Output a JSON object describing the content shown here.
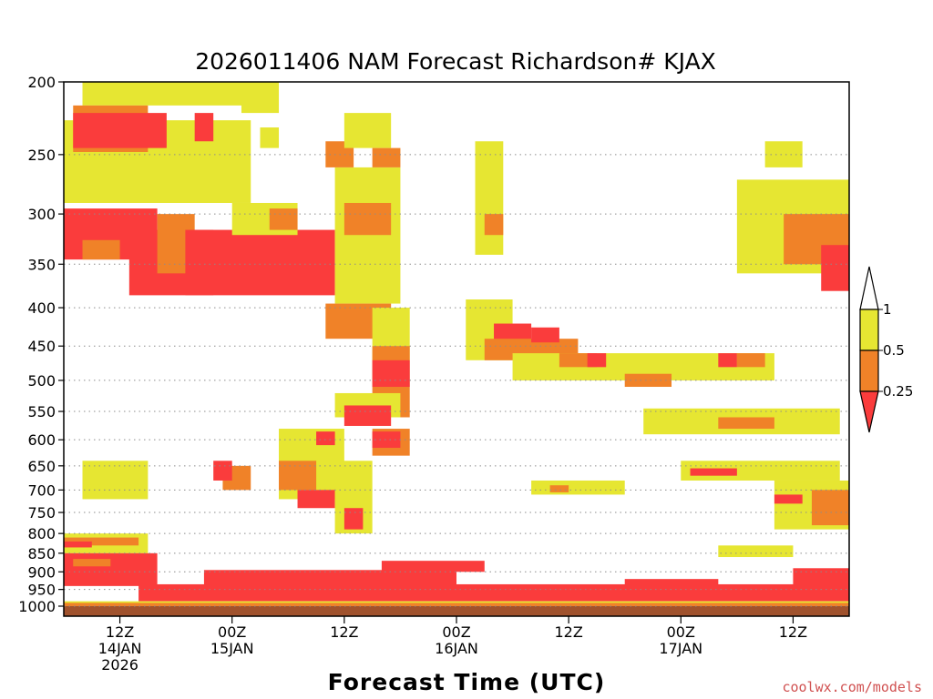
{
  "chart_data": {
    "type": "heatmap",
    "title": "2026011406 NAM Forecast Richardson# KJAX",
    "xlabel": "Forecast Time (UTC)",
    "ylabel": "",
    "credit": "coolwx.com/models",
    "x_range_hours": [
      0,
      84
    ],
    "y_range_hPa": [
      1000,
      200
    ],
    "y_ticks": [
      {
        "p": 200,
        "label": "200"
      },
      {
        "p": 250,
        "label": "250"
      },
      {
        "p": 300,
        "label": "300"
      },
      {
        "p": 350,
        "label": "350"
      },
      {
        "p": 400,
        "label": "400"
      },
      {
        "p": 450,
        "label": "450"
      },
      {
        "p": 500,
        "label": "500"
      },
      {
        "p": 550,
        "label": "550"
      },
      {
        "p": 600,
        "label": "600"
      },
      {
        "p": 650,
        "label": "650"
      },
      {
        "p": 700,
        "label": "700"
      },
      {
        "p": 750,
        "label": "750"
      },
      {
        "p": 800,
        "label": "800"
      },
      {
        "p": 850,
        "label": "850"
      },
      {
        "p": 900,
        "label": "900"
      },
      {
        "p": 950,
        "label": "950"
      },
      {
        "p": 1000,
        "label": "1000"
      }
    ],
    "x_ticks": [
      {
        "hour": 6,
        "lines": [
          "12Z",
          "14JAN",
          "2026"
        ]
      },
      {
        "hour": 18,
        "lines": [
          "00Z",
          "15JAN"
        ]
      },
      {
        "hour": 30,
        "lines": [
          "12Z"
        ]
      },
      {
        "hour": 42,
        "lines": [
          "00Z",
          "16JAN"
        ]
      },
      {
        "hour": 54,
        "lines": [
          "12Z"
        ]
      },
      {
        "hour": 66,
        "lines": [
          "00Z",
          "17JAN"
        ]
      },
      {
        "hour": 78,
        "lines": [
          "12Z"
        ]
      }
    ],
    "colorbar": {
      "labels": [
        "1",
        "0.5",
        "0.25"
      ],
      "bins": [
        {
          "range": "0.5-1",
          "color": "#e6e632"
        },
        {
          "range": "0.25-0.5",
          "color": "#f08228"
        },
        {
          "range": "<0.25",
          "color": "#fa3c3c"
        }
      ],
      "top_color": "#ffffff"
    },
    "ground_color": "#a0522d",
    "categories": [
      "ri_0.5_1",
      "ri_0.25_0.5",
      "ri_lt_0.25"
    ],
    "colors": {
      "ri_0.5_1": "#e6e632",
      "ri_0.25_0.5": "#f08228",
      "ri_lt_0.25": "#fa3c3c"
    },
    "regions": [
      {
        "bin": "ri_0.5_1",
        "t": [
          0,
          20
        ],
        "p": [
          225,
          290
        ]
      },
      {
        "bin": "ri_0.5_1",
        "t": [
          2,
          20
        ],
        "p": [
          200,
          215
        ]
      },
      {
        "bin": "ri_0.25_0.5",
        "t": [
          1,
          9
        ],
        "p": [
          215,
          248
        ]
      },
      {
        "bin": "ri_lt_0.25",
        "t": [
          1,
          11
        ],
        "p": [
          220,
          245
        ]
      },
      {
        "bin": "ri_lt_0.25",
        "t": [
          14,
          16
        ],
        "p": [
          220,
          240
        ]
      },
      {
        "bin": "ri_0.5_1",
        "t": [
          19,
          23
        ],
        "p": [
          200,
          220
        ]
      },
      {
        "bin": "ri_0.5_1",
        "t": [
          21,
          23
        ],
        "p": [
          230,
          245
        ]
      },
      {
        "bin": "ri_lt_0.25",
        "t": [
          0,
          10
        ],
        "p": [
          295,
          345
        ]
      },
      {
        "bin": "ri_lt_0.25",
        "t": [
          7,
          16
        ],
        "p": [
          315,
          385
        ]
      },
      {
        "bin": "ri_0.25_0.5",
        "t": [
          2,
          6
        ],
        "p": [
          325,
          345
        ]
      },
      {
        "bin": "ri_0.25_0.5",
        "t": [
          10,
          14
        ],
        "p": [
          300,
          360
        ]
      },
      {
        "bin": "ri_lt_0.25",
        "t": [
          13,
          29
        ],
        "p": [
          315,
          385
        ]
      },
      {
        "bin": "ri_0.5_1",
        "t": [
          18,
          25
        ],
        "p": [
          290,
          320
        ]
      },
      {
        "bin": "ri_0.25_0.5",
        "t": [
          22,
          25
        ],
        "p": [
          295,
          315
        ]
      },
      {
        "bin": "ri_0.5_1",
        "t": [
          29,
          36
        ],
        "p": [
          260,
          395
        ]
      },
      {
        "bin": "ri_0.25_0.5",
        "t": [
          30,
          35
        ],
        "p": [
          290,
          320
        ]
      },
      {
        "bin": "ri_0.25_0.5",
        "t": [
          28,
          31
        ],
        "p": [
          240,
          260
        ]
      },
      {
        "bin": "ri_0.5_1",
        "t": [
          30,
          35
        ],
        "p": [
          220,
          245
        ]
      },
      {
        "bin": "ri_0.25_0.5",
        "t": [
          33,
          36
        ],
        "p": [
          245,
          260
        ]
      },
      {
        "bin": "ri_0.25_0.5",
        "t": [
          28,
          35
        ],
        "p": [
          395,
          440
        ]
      },
      {
        "bin": "ri_0.5_1",
        "t": [
          33,
          37
        ],
        "p": [
          400,
          470
        ]
      },
      {
        "bin": "ri_0.25_0.5",
        "t": [
          33,
          37
        ],
        "p": [
          450,
          560
        ]
      },
      {
        "bin": "ri_lt_0.25",
        "t": [
          33,
          37
        ],
        "p": [
          470,
          510
        ]
      },
      {
        "bin": "ri_0.5_1",
        "t": [
          29,
          36
        ],
        "p": [
          520,
          560
        ]
      },
      {
        "bin": "ri_lt_0.25",
        "t": [
          30,
          35
        ],
        "p": [
          540,
          575
        ]
      },
      {
        "bin": "ri_0.25_0.5",
        "t": [
          33,
          37
        ],
        "p": [
          580,
          630
        ]
      },
      {
        "bin": "ri_lt_0.25",
        "t": [
          33,
          36
        ],
        "p": [
          585,
          615
        ]
      },
      {
        "bin": "ri_0.5_1",
        "t": [
          23,
          30
        ],
        "p": [
          580,
          720
        ]
      },
      {
        "bin": "ri_0.25_0.5",
        "t": [
          23,
          27
        ],
        "p": [
          640,
          700
        ]
      },
      {
        "bin": "ri_lt_0.25",
        "t": [
          25,
          29
        ],
        "p": [
          700,
          740
        ]
      },
      {
        "bin": "ri_lt_0.25",
        "t": [
          27,
          29
        ],
        "p": [
          585,
          610
        ]
      },
      {
        "bin": "ri_0.5_1",
        "t": [
          29,
          33
        ],
        "p": [
          640,
          800
        ]
      },
      {
        "bin": "ri_lt_0.25",
        "t": [
          30,
          32
        ],
        "p": [
          740,
          790
        ]
      },
      {
        "bin": "ri_0.25_0.5",
        "t": [
          17,
          20
        ],
        "p": [
          650,
          700
        ]
      },
      {
        "bin": "ri_lt_0.25",
        "t": [
          16,
          18
        ],
        "p": [
          640,
          680
        ]
      },
      {
        "bin": "ri_0.5_1",
        "t": [
          44,
          47
        ],
        "p": [
          240,
          340
        ]
      },
      {
        "bin": "ri_0.25_0.5",
        "t": [
          45,
          47
        ],
        "p": [
          300,
          320
        ]
      },
      {
        "bin": "ri_0.5_1",
        "t": [
          43,
          48
        ],
        "p": [
          390,
          470
        ]
      },
      {
        "bin": "ri_lt_0.25",
        "t": [
          46,
          50
        ],
        "p": [
          420,
          450
        ]
      },
      {
        "bin": "ri_0.25_0.5",
        "t": [
          45,
          55
        ],
        "p": [
          440,
          470
        ]
      },
      {
        "bin": "ri_lt_0.25",
        "t": [
          50,
          53
        ],
        "p": [
          425,
          445
        ]
      },
      {
        "bin": "ri_0.5_1",
        "t": [
          48,
          76
        ],
        "p": [
          460,
          500
        ]
      },
      {
        "bin": "ri_0.25_0.5",
        "t": [
          53,
          57
        ],
        "p": [
          460,
          480
        ]
      },
      {
        "bin": "ri_lt_0.25",
        "t": [
          56,
          58
        ],
        "p": [
          460,
          480
        ]
      },
      {
        "bin": "ri_0.25_0.5",
        "t": [
          60,
          65
        ],
        "p": [
          490,
          510
        ]
      },
      {
        "bin": "ri_lt_0.25",
        "t": [
          70,
          72
        ],
        "p": [
          460,
          480
        ]
      },
      {
        "bin": "ri_0.25_0.5",
        "t": [
          72,
          75
        ],
        "p": [
          460,
          480
        ]
      },
      {
        "bin": "ri_0.5_1",
        "t": [
          62,
          83
        ],
        "p": [
          545,
          590
        ]
      },
      {
        "bin": "ri_0.25_0.5",
        "t": [
          70,
          76
        ],
        "p": [
          560,
          580
        ]
      },
      {
        "bin": "ri_0.5_1",
        "t": [
          66,
          83
        ],
        "p": [
          640,
          680
        ]
      },
      {
        "bin": "ri_lt_0.25",
        "t": [
          67,
          72
        ],
        "p": [
          655,
          670
        ]
      },
      {
        "bin": "ri_0.5_1",
        "t": [
          76,
          84
        ],
        "p": [
          680,
          790
        ]
      },
      {
        "bin": "ri_0.25_0.5",
        "t": [
          80,
          84
        ],
        "p": [
          700,
          780
        ]
      },
      {
        "bin": "ri_lt_0.25",
        "t": [
          76,
          79
        ],
        "p": [
          710,
          730
        ]
      },
      {
        "bin": "ri_0.5_1",
        "t": [
          72,
          84
        ],
        "p": [
          270,
          360
        ]
      },
      {
        "bin": "ri_0.25_0.5",
        "t": [
          77,
          84
        ],
        "p": [
          300,
          350
        ]
      },
      {
        "bin": "ri_lt_0.25",
        "t": [
          81,
          84
        ],
        "p": [
          330,
          380
        ]
      },
      {
        "bin": "ri_0.5_1",
        "t": [
          75,
          79
        ],
        "p": [
          240,
          260
        ]
      },
      {
        "bin": "ri_0.5_1",
        "t": [
          50,
          60
        ],
        "p": [
          680,
          710
        ]
      },
      {
        "bin": "ri_0.25_0.5",
        "t": [
          52,
          54
        ],
        "p": [
          690,
          705
        ]
      },
      {
        "bin": "ri_0.5_1",
        "t": [
          2,
          9
        ],
        "p": [
          640,
          720
        ]
      },
      {
        "bin": "ri_0.5_1",
        "t": [
          0,
          9
        ],
        "p": [
          800,
          850
        ]
      },
      {
        "bin": "ri_0.25_0.5",
        "t": [
          0,
          8
        ],
        "p": [
          810,
          830
        ]
      },
      {
        "bin": "ri_lt_0.25",
        "t": [
          0,
          3
        ],
        "p": [
          820,
          835
        ]
      },
      {
        "bin": "ri_0.5_1",
        "t": [
          70,
          78
        ],
        "p": [
          830,
          860
        ]
      },
      {
        "bin": "ri_lt_0.25",
        "t": [
          0,
          10
        ],
        "p": [
          850,
          940
        ]
      },
      {
        "bin": "ri_0.25_0.5",
        "t": [
          1,
          5
        ],
        "p": [
          865,
          885
        ]
      },
      {
        "bin": "ri_lt_0.25",
        "t": [
          8,
          84
        ],
        "p": [
          935,
          985
        ]
      },
      {
        "bin": "ri_lt_0.25",
        "t": [
          15,
          42
        ],
        "p": [
          895,
          945
        ]
      },
      {
        "bin": "ri_lt_0.25",
        "t": [
          34,
          45
        ],
        "p": [
          870,
          900
        ]
      },
      {
        "bin": "ri_lt_0.25",
        "t": [
          60,
          70
        ],
        "p": [
          920,
          960
        ]
      },
      {
        "bin": "ri_lt_0.25",
        "t": [
          78,
          84
        ],
        "p": [
          890,
          960
        ]
      },
      {
        "bin": "ri_0.5_1",
        "t": [
          0,
          84
        ],
        "p": [
          985,
          1000
        ]
      },
      {
        "bin": "ri_0.25_0.5",
        "t": [
          0,
          84
        ],
        "p": [
          990,
          1000
        ]
      }
    ]
  }
}
